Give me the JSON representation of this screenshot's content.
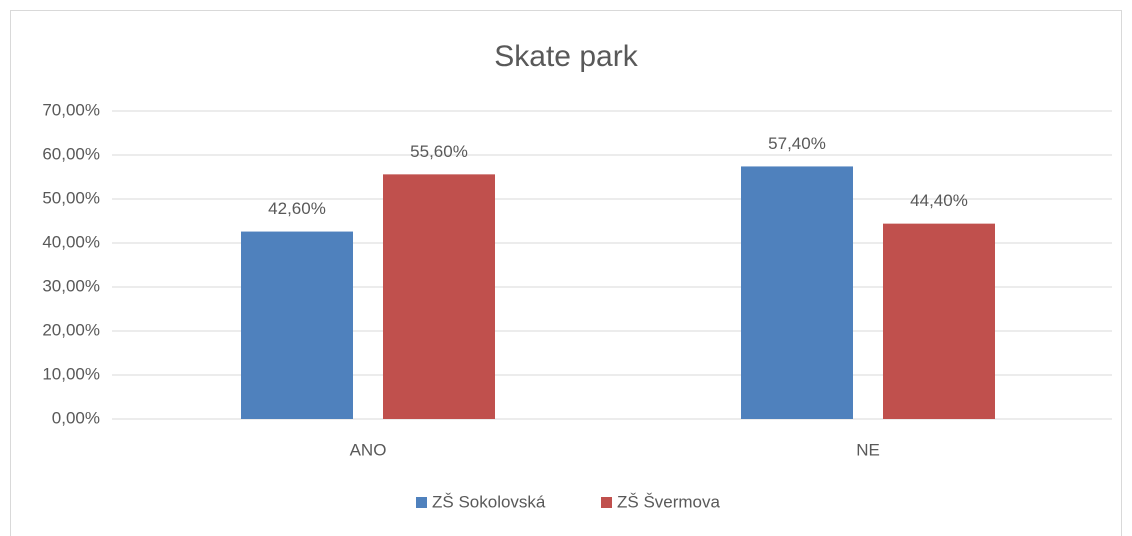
{
  "chart_data": {
    "type": "bar",
    "title": "Skate park",
    "categories": [
      "ANO",
      "NE"
    ],
    "series": [
      {
        "name": "ZŠ Sokolovská",
        "color": "#4f81bd",
        "values": [
          42.6,
          57.4
        ],
        "value_labels": [
          "42,60%",
          "57,40%"
        ]
      },
      {
        "name": "ZŠ Švermova",
        "color": "#c0504d",
        "values": [
          55.6,
          44.4
        ],
        "value_labels": [
          "55,60%",
          "44,40%"
        ]
      }
    ],
    "ylim": [
      0,
      70
    ],
    "yticks": [
      {
        "value": 0,
        "label": "0,00%"
      },
      {
        "value": 10,
        "label": "10,00%"
      },
      {
        "value": 20,
        "label": "20,00%"
      },
      {
        "value": 30,
        "label": "30,00%"
      },
      {
        "value": 40,
        "label": "40,00%"
      },
      {
        "value": 50,
        "label": "50,00%"
      },
      {
        "value": 60,
        "label": "60,00%"
      },
      {
        "value": 70,
        "label": "70,00%"
      }
    ],
    "grid": true,
    "legend": "bottom"
  }
}
